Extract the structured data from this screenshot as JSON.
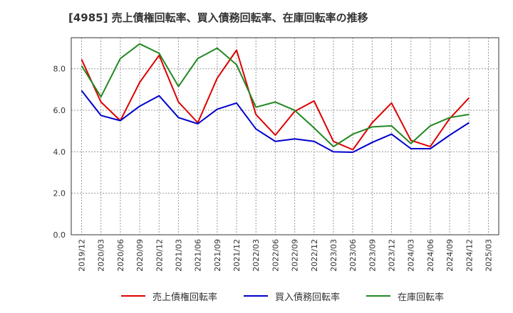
{
  "title": "[4985]  売上債権回転率、買入債務回転率、在庫回転率の推移",
  "chart_data": {
    "type": "line",
    "title": "[4985]  売上債権回転率、買入債務回転率、在庫回転率の推移",
    "xlabel": "",
    "ylabel": "",
    "ylim": [
      0,
      9.5
    ],
    "yticks": [
      "0.0",
      "2.0",
      "4.0",
      "6.0",
      "8.0"
    ],
    "ytick_values": [
      0,
      2,
      4,
      6,
      8
    ],
    "grid": true,
    "legend_position": "bottom",
    "categories": [
      "2019/12",
      "2020/03",
      "2020/06",
      "2020/09",
      "2020/12",
      "2021/03",
      "2021/06",
      "2021/09",
      "2021/12",
      "2022/03",
      "2022/06",
      "2022/09",
      "2022/12",
      "2023/03",
      "2023/06",
      "2023/09",
      "2023/12",
      "2024/03",
      "2024/06",
      "2024/09",
      "2024/12",
      "2025/03"
    ],
    "series": [
      {
        "name": "売上債権回転率",
        "color": "#dd0000",
        "values": [
          8.45,
          6.4,
          5.5,
          7.35,
          8.65,
          6.4,
          5.4,
          7.55,
          8.9,
          5.8,
          4.8,
          5.95,
          6.45,
          4.5,
          4.1,
          5.4,
          6.35,
          4.55,
          4.25,
          5.6,
          6.6,
          null
        ]
      },
      {
        "name": "買入債務回転率",
        "color": "#0000cc",
        "values": [
          6.95,
          5.75,
          5.5,
          6.2,
          6.7,
          5.65,
          5.35,
          6.05,
          6.35,
          5.1,
          4.5,
          4.62,
          4.5,
          4.0,
          3.98,
          4.45,
          4.85,
          4.15,
          4.15,
          4.8,
          5.4,
          null
        ]
      },
      {
        "name": "在庫回転率",
        "color": "#228822",
        "values": [
          8.15,
          6.65,
          8.5,
          9.2,
          8.75,
          7.15,
          8.5,
          9.0,
          8.2,
          6.15,
          6.4,
          6.0,
          5.15,
          4.25,
          4.85,
          5.2,
          5.25,
          4.4,
          5.25,
          5.65,
          5.8,
          null
        ]
      }
    ]
  }
}
